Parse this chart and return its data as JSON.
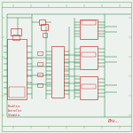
{
  "bg_color": "#eef2ee",
  "border_color": "#66aa66",
  "sc": "#cc2222",
  "wc": "#117733",
  "title": "Bru...",
  "figsize": [
    1.5,
    1.5
  ],
  "dpi": 100
}
